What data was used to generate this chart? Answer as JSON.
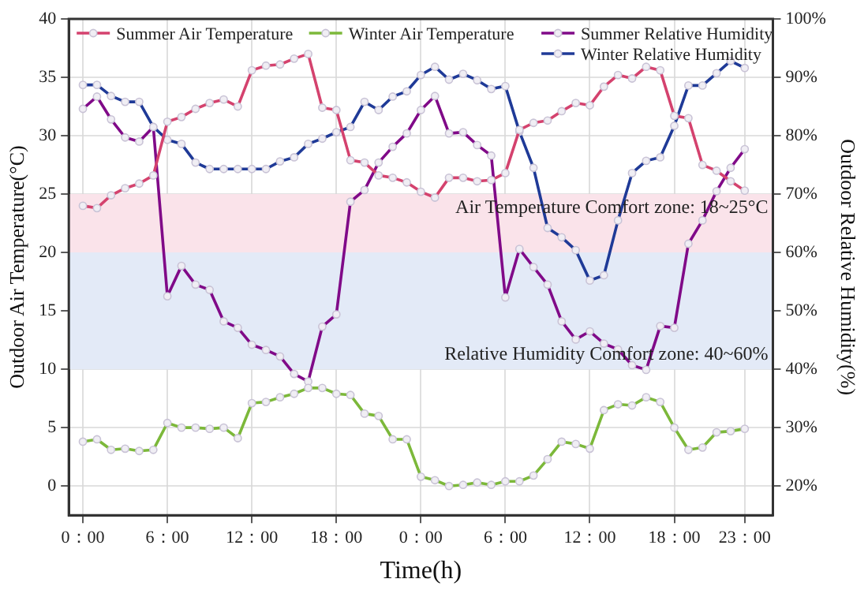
{
  "chart_data": {
    "type": "line",
    "xlabel": "Time(h)",
    "ylabel": "Outdoor Air Temperature(°C)",
    "y2label": "Outdoor Relative Humidity(%)",
    "categories": [
      "0：00",
      null,
      null,
      null,
      null,
      null,
      "6：00",
      null,
      null,
      null,
      null,
      null,
      "12：00",
      null,
      null,
      null,
      null,
      null,
      "18：00",
      null,
      null,
      null,
      null,
      null,
      "0：00",
      null,
      null,
      null,
      null,
      null,
      "6：00",
      null,
      null,
      null,
      null,
      null,
      "12：00",
      null,
      null,
      null,
      null,
      null,
      "18：00",
      null,
      null,
      null,
      null,
      "23：00"
    ],
    "ylim": [
      -2.5,
      40
    ],
    "yticks": [
      0,
      5,
      10,
      15,
      20,
      25,
      30,
      35,
      40
    ],
    "y2lim": [
      15,
      100
    ],
    "y2ticks": [
      {
        "value": 20,
        "label": "20%"
      },
      {
        "value": 30,
        "label": "30%"
      },
      {
        "value": 40,
        "label": "40%"
      },
      {
        "value": 50,
        "label": "50%"
      },
      {
        "value": 60,
        "label": "60%"
      },
      {
        "value": 70,
        "label": "70%"
      },
      {
        "value": 80,
        "label": "80%"
      },
      {
        "value": 90,
        "label": "90%"
      },
      {
        "value": 100,
        "label": "100%"
      }
    ],
    "series": [
      {
        "name": "Summer Air Temperature",
        "color": "#d4426e",
        "values": [
          24.0,
          23.8,
          24.9,
          25.5,
          25.9,
          26.6,
          31.2,
          31.6,
          32.3,
          32.8,
          33.1,
          32.5,
          35.6,
          36.0,
          36.1,
          36.6,
          37.0,
          32.4,
          32.2,
          27.9,
          27.7,
          26.6,
          26.4,
          26.0,
          25.2,
          24.7,
          26.4,
          26.4,
          26.1,
          26.2,
          26.8,
          30.5,
          31.1,
          31.3,
          32.1,
          32.8,
          32.6,
          34.2,
          35.2,
          34.9,
          35.9,
          35.6,
          31.7,
          31.5,
          27.5,
          27.0,
          26.1,
          25.3
        ]
      },
      {
        "name": "Winter Air Temperature",
        "color": "#7cb83a",
        "values": [
          3.8,
          4.0,
          3.1,
          3.2,
          3.0,
          3.1,
          5.4,
          5.0,
          5.0,
          4.9,
          5.0,
          4.1,
          7.1,
          7.2,
          7.6,
          7.9,
          8.4,
          8.4,
          7.9,
          7.8,
          6.2,
          6.0,
          4.0,
          4.0,
          0.8,
          0.5,
          0.0,
          0.1,
          0.3,
          0.1,
          0.4,
          0.4,
          0.9,
          2.3,
          3.8,
          3.6,
          3.2,
          6.5,
          7.0,
          6.9,
          7.6,
          7.2,
          5.0,
          3.1,
          3.3,
          4.6,
          4.7,
          4.9
        ]
      },
      {
        "name": "Summer Relative Humidity",
        "color": "#800a88",
        "axis": "y2",
        "values": [
          84.6,
          86.7,
          82.8,
          79.7,
          79.0,
          81.5,
          52.5,
          57.7,
          54.5,
          53.6,
          48.2,
          47.1,
          44.2,
          43.3,
          42.2,
          39.2,
          37.9,
          47.3,
          49.4,
          68.7,
          70.7,
          75.4,
          78.1,
          80.4,
          84.4,
          86.8,
          80.4,
          80.6,
          78.4,
          76.6,
          52.3,
          60.6,
          57.5,
          54.5,
          48.2,
          45.1,
          46.5,
          44.4,
          43.4,
          40.7,
          39.9,
          47.4,
          47.1,
          61.5,
          65.5,
          70.5,
          74.5,
          77.7
        ]
      },
      {
        "name": "Winter Relative Humidity",
        "color": "#1f3a97",
        "axis": "y2",
        "values": [
          88.7,
          88.7,
          86.8,
          85.8,
          85.8,
          81.5,
          79.3,
          78.6,
          75.4,
          74.3,
          74.3,
          74.3,
          74.3,
          74.3,
          75.6,
          76.3,
          78.6,
          79.5,
          80.6,
          81.5,
          85.8,
          84.4,
          86.7,
          87.6,
          90.4,
          91.8,
          89.6,
          90.6,
          89.5,
          88.0,
          88.5,
          80.7,
          74.5,
          64.2,
          62.6,
          60.4,
          55.2,
          56.1,
          65.5,
          73.6,
          75.7,
          76.3,
          81.7,
          88.6,
          88.6,
          90.7,
          92.8,
          91.6
        ]
      }
    ],
    "bands": [
      {
        "axis": "y",
        "from": 18,
        "to": 25,
        "label": "Air Temperature Comfort zone: 18~25°C",
        "color": "#fae3ea"
      },
      {
        "axis": "y2",
        "from": 40,
        "to": 60,
        "label": "Relative Humidity Comfort zone: 40~60%",
        "color": "#e3eaf7"
      }
    ],
    "grid": true,
    "legend": "top",
    "marker": "circle",
    "line_style": "solid"
  }
}
